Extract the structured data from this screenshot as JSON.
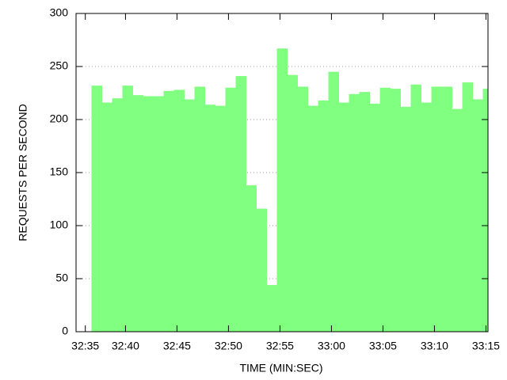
{
  "chart_data": {
    "type": "bar",
    "x_label": "TIME (MIN:SEC)",
    "y_label": "REQUESTS PER SECOND",
    "x": [
      37.2,
      38.2,
      39.2,
      40.2,
      41.2,
      42.2,
      43.2,
      44.2,
      45.2,
      46.2,
      47.2,
      48.2,
      49.2,
      50.2,
      51.2,
      52.2,
      53.2,
      54.2,
      55.2,
      56.2,
      57.2,
      58.2,
      59.2,
      60.2,
      61.2,
      62.2,
      63.2,
      64.2,
      65.2,
      66.2,
      67.2,
      68.2,
      69.2,
      70.2,
      71.2,
      72.2,
      73.2,
      74.2,
      75.2
    ],
    "values": [
      232,
      216,
      220,
      232,
      223,
      222,
      222,
      227,
      228,
      219,
      231,
      214,
      213,
      230,
      241,
      138,
      116,
      44,
      267,
      242,
      231,
      213,
      218,
      245,
      216,
      224,
      226,
      215,
      230,
      229,
      212,
      233,
      216,
      231,
      231,
      210,
      235,
      219,
      229
    ],
    "color": "#80ff80",
    "xlim": [
      35.2,
      75.2
    ],
    "xticks": [
      {
        "value": 36.1,
        "label": "32:35"
      },
      {
        "value": 40,
        "label": "32:40"
      },
      {
        "value": 45,
        "label": "32:45"
      },
      {
        "value": 50,
        "label": "32:50"
      },
      {
        "value": 55,
        "label": "32:55"
      },
      {
        "value": 60,
        "label": "33:00"
      },
      {
        "value": 65,
        "label": "33:05"
      },
      {
        "value": 70,
        "label": "33:10"
      },
      {
        "value": 75,
        "label": "33:15"
      }
    ],
    "ylim": [
      0,
      300
    ],
    "yticks": [
      0,
      50,
      100,
      150,
      200,
      250,
      300
    ],
    "grid": true
  }
}
